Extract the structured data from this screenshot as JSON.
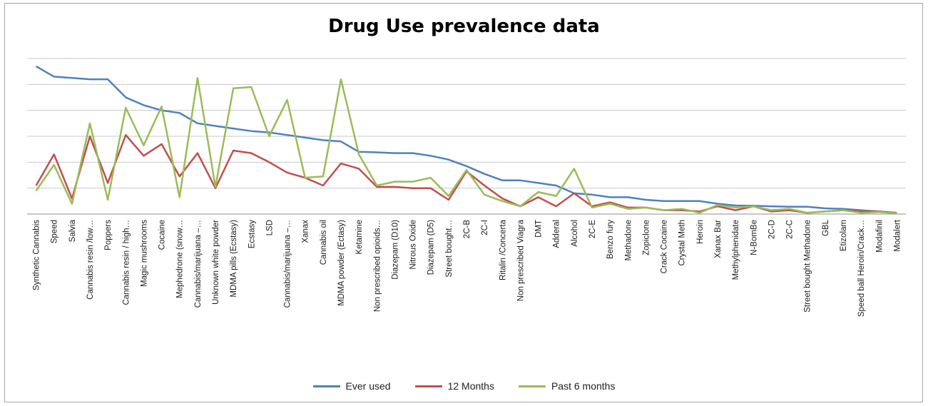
{
  "chart_data": {
    "type": "line",
    "title": "Drug Use prevalence data",
    "xlabel": "",
    "ylabel": "",
    "ylim": [
      0,
      60
    ],
    "y_gridlines": [
      10,
      20,
      30,
      40,
      50,
      60
    ],
    "legend_position": "bottom",
    "categories": [
      "Synthetic Cannabis",
      "Speed",
      "Salvia",
      "Cannabis resin /low…",
      "Poppers",
      "Cannabis resin / high…",
      "Magic mushrooms",
      "Cocaine",
      "Mephedrone (snow…",
      "Cannabis/marijuana –…",
      "Unknown white powder",
      "MDMA pills (Ecstasy)",
      "Ecstasy",
      "LSD",
      "Cannabis/marijuana –…",
      "Xanax",
      "Cannabis oil",
      "MDMA powder (Ectasy)",
      "Ketamine",
      "Non prescribed opioids…",
      "Diazepam (D10)",
      "Nitrous Oxide",
      "Diazepam (D5)",
      "Street bought…",
      "2C-B",
      "2C-I",
      "Ritalin /Concerta",
      "Non prescribed Viagra",
      "DMT",
      "Adderal",
      "Alcohol",
      "2C-E",
      "Benzo fury",
      "Methadone",
      "Zopiclone",
      "Crack Cocaine",
      "Crystal Meth",
      "Heroin",
      "Xanax Bar",
      "Methylphenidate",
      "N-BomBe",
      "2C-D",
      "2C-C",
      "Street bought Methadone",
      "GBL",
      "Etizolam",
      "Speed ball Heroin/Crack…",
      "Modafinil",
      "Modalert"
    ],
    "series": [
      {
        "name": "Ever used",
        "color": "#4f81bd",
        "values": [
          57,
          53,
          52.5,
          52,
          52,
          45,
          42,
          40,
          39,
          35,
          34,
          33,
          32,
          31.5,
          30.5,
          29.5,
          28.5,
          28,
          24,
          23.8,
          23.5,
          23.5,
          22.5,
          21,
          18.5,
          15.5,
          13,
          13,
          12,
          11,
          8,
          7.5,
          6.5,
          6.5,
          5.5,
          5,
          5,
          5,
          4,
          3.3,
          3.2,
          3,
          2.8,
          2.8,
          2.2,
          2,
          1.5,
          1,
          0.5
        ]
      },
      {
        "name": "12 Months",
        "color": "#c0504d",
        "values": [
          11,
          23,
          6,
          30,
          12,
          30.5,
          22.5,
          27,
          14.5,
          23.5,
          10,
          24.5,
          23.5,
          20,
          16,
          14,
          11,
          19.5,
          17.5,
          10.5,
          10.5,
          10,
          10,
          5.5,
          16.5,
          11,
          6,
          3,
          6.5,
          3,
          8,
          3,
          4.5,
          2.5,
          2.5,
          1.5,
          1.5,
          1,
          3,
          1.5,
          3,
          1,
          1.5,
          0.5,
          1,
          1.5,
          1,
          1,
          0.5
        ]
      },
      {
        "name": "Past 6 months",
        "color": "#9bbb59",
        "values": [
          9,
          19,
          4,
          35,
          5.5,
          41,
          26.5,
          41.5,
          6.5,
          52.5,
          10.5,
          48.5,
          49,
          30,
          44,
          14,
          14.5,
          52,
          23,
          11,
          12.5,
          12.5,
          14,
          7,
          17,
          7.5,
          5,
          3,
          8.5,
          7,
          17.5,
          2.5,
          4,
          2,
          2.5,
          1.5,
          2,
          0.5,
          3.5,
          2.5,
          3,
          1.5,
          2,
          0.5,
          1,
          1.5,
          0.5,
          0.8,
          0.3
        ]
      }
    ]
  }
}
